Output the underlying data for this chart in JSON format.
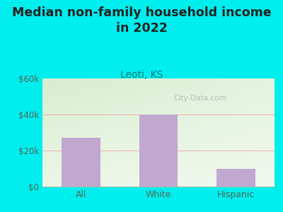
{
  "title": "Median non-family household income\nin 2022",
  "subtitle": "Leoti, KS",
  "categories": [
    "All",
    "White",
    "Hispanic"
  ],
  "values": [
    27000,
    40000,
    10000
  ],
  "bar_color": "#C0A8D0",
  "background_outer": "#00EEEE",
  "ylim": [
    0,
    60000
  ],
  "yticks": [
    0,
    20000,
    40000,
    60000
  ],
  "ytick_labels": [
    "$0",
    "$20k",
    "$40k",
    "$60k"
  ],
  "title_fontsize": 12.5,
  "subtitle_fontsize": 10,
  "title_color": "#222222",
  "subtitle_color": "#007777",
  "axis_label_color": "#556655",
  "watermark": "City-Data.com",
  "grid_color": "#F0A0A0",
  "plot_bg_color_top_left": "#D8EED0",
  "plot_bg_color_bottom_right": "#FFFFFF"
}
